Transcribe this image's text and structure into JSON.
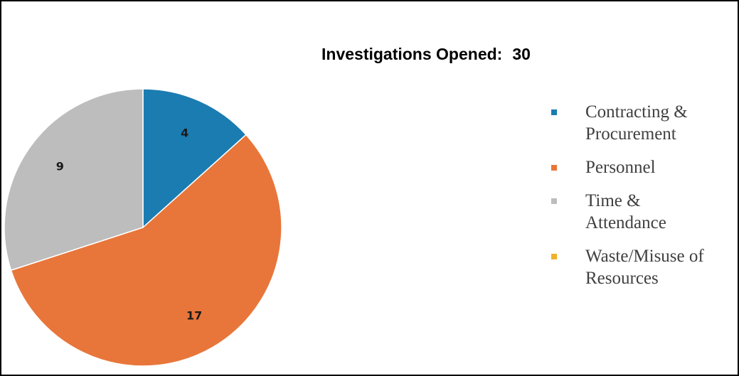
{
  "chart_data": {
    "type": "pie",
    "title_label": "Investigations Opened:",
    "title_value": "30",
    "slices": [
      {
        "name": "Contracting & Procurement",
        "value": 4,
        "label": "4",
        "color": "#1b7cb1"
      },
      {
        "name": "Personnel",
        "value": 17,
        "label": "17",
        "color": "#e8763a"
      },
      {
        "name": "Time & Attendance",
        "value": 9,
        "label": "9",
        "color": "#bdbdbd"
      },
      {
        "name": "Waste/Misuse of Resources",
        "value": 0,
        "label": "",
        "color": "#f0b12a"
      }
    ],
    "legend_position": "right"
  }
}
